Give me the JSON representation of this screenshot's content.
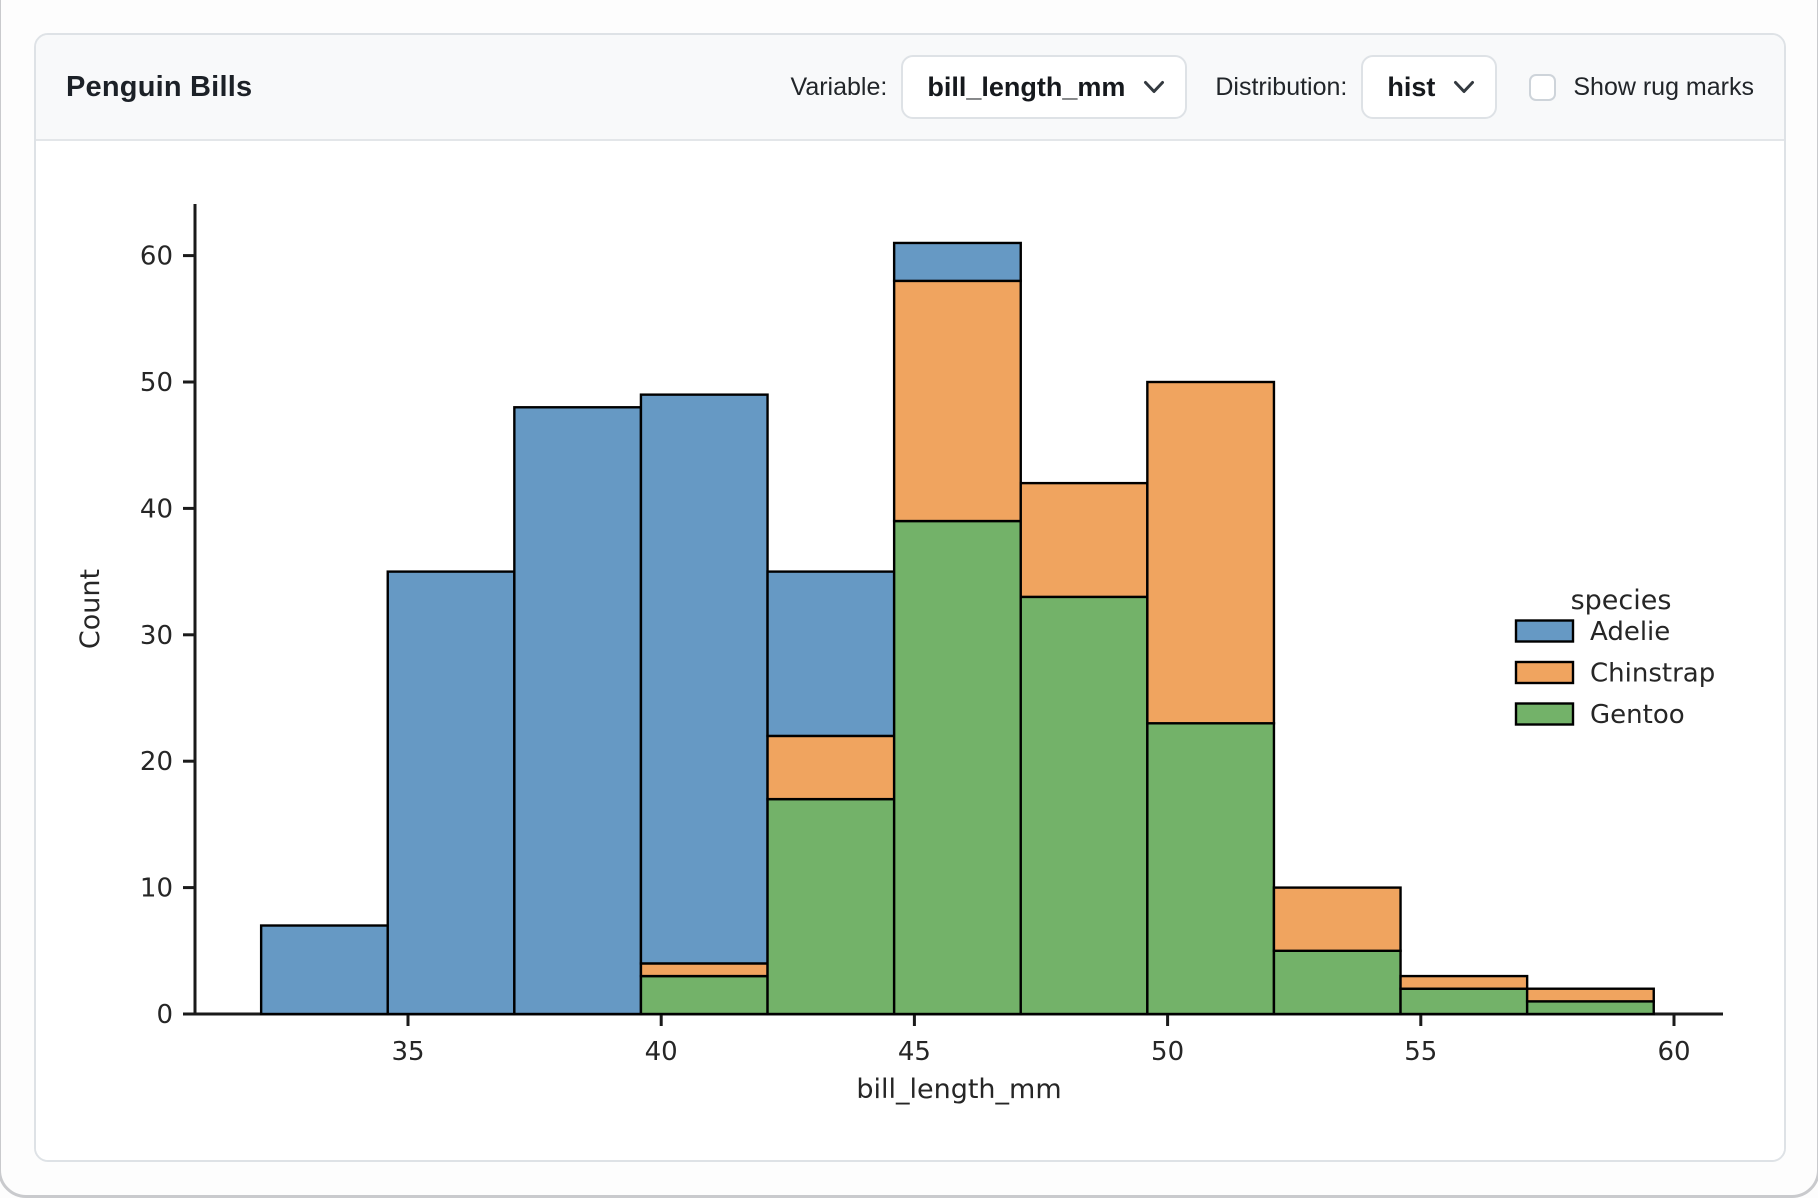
{
  "header": {
    "title": "Penguin Bills",
    "variable_label": "Variable:",
    "variable_value": "bill_length_mm",
    "distribution_label": "Distribution:",
    "distribution_value": "hist",
    "rug_label": "Show rug marks",
    "rug_checked": false,
    "chevron_icon": "chevron-down",
    "checkbox_icon": "checkbox-unchecked"
  },
  "colors": {
    "adelie_blue": "#6699c4",
    "chinstrap_orange": "#f0a45f",
    "gentoo_green": "#73b269",
    "bar_edge": "#000000",
    "axis": "#1a1a1a"
  },
  "chart_data": {
    "type": "bar",
    "subtype": "stacked-histogram",
    "title": "",
    "xlabel": "bill_length_mm",
    "ylabel": "Count",
    "xlim": [
      30.8,
      61.0
    ],
    "ylim": [
      0,
      64
    ],
    "grid": false,
    "x_ticks": [
      35,
      40,
      45,
      50,
      55,
      60
    ],
    "y_ticks": [
      0,
      10,
      20,
      30,
      40,
      50,
      60
    ],
    "bin_edges": [
      32.1,
      34.6,
      37.1,
      39.6,
      42.1,
      44.6,
      47.1,
      49.6,
      52.1,
      54.6,
      57.1,
      59.6
    ],
    "stack_order_note": "bottom to top: Gentoo, Chinstrap, Adelie",
    "series": [
      {
        "name": "Gentoo",
        "color": "#73b269",
        "values": [
          0,
          0,
          0,
          3,
          17,
          39,
          33,
          23,
          5,
          2,
          1
        ]
      },
      {
        "name": "Chinstrap",
        "color": "#f0a45f",
        "values": [
          0,
          0,
          0,
          1,
          5,
          19,
          9,
          27,
          5,
          1,
          1
        ]
      },
      {
        "name": "Adelie",
        "color": "#6699c4",
        "values": [
          7,
          35,
          48,
          45,
          13,
          3,
          0,
          0,
          0,
          0,
          0
        ]
      }
    ],
    "bin_totals": [
      7,
      35,
      48,
      49,
      35,
      61,
      42,
      50,
      10,
      3,
      2
    ],
    "legend": {
      "title": "species",
      "position": "right",
      "entries": [
        {
          "label": "Adelie",
          "color": "#6699c4"
        },
        {
          "label": "Chinstrap",
          "color": "#f0a45f"
        },
        {
          "label": "Gentoo",
          "color": "#73b269"
        }
      ]
    }
  }
}
